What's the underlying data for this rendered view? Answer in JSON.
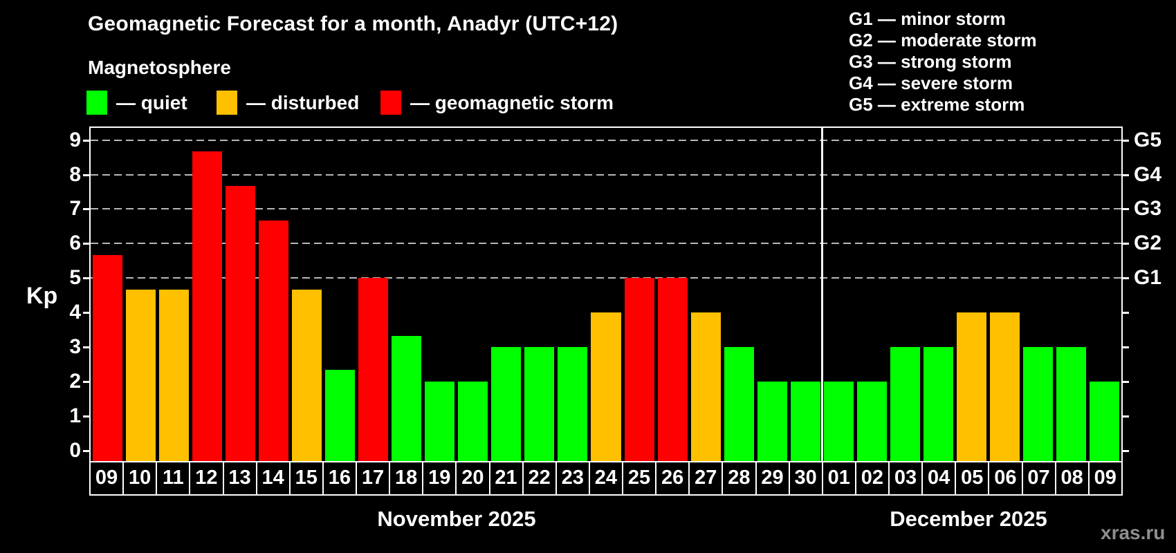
{
  "header": {
    "title": "Geomagnetic Forecast for a month, Anadyr (UTC+12)"
  },
  "legend": {
    "title": "Magnetosphere",
    "items": [
      {
        "key": "quiet",
        "label": "— quiet",
        "color": "#00ff00"
      },
      {
        "key": "disturbed",
        "label": "— disturbed",
        "color": "#ffc000"
      },
      {
        "key": "storm",
        "label": "— geomagnetic storm",
        "color": "#ff0000"
      }
    ]
  },
  "g_legend": {
    "items": [
      "G1 — minor storm",
      "G2 — moderate storm",
      "G3 — strong storm",
      "G4 — severe storm",
      "G5 — extreme storm"
    ]
  },
  "watermark": "xras.ru",
  "chart_data": {
    "type": "bar",
    "title": "Geomagnetic Forecast for a month, Anadyr (UTC+12)",
    "ylabel": "Kp",
    "xlabel": "",
    "ylim": [
      0,
      9
    ],
    "grid": "dashed horizontal lines at Kp 5-9 (G1-G5 storm levels) only",
    "legend_position": "top-left",
    "kp_ticks": [
      0,
      1,
      2,
      3,
      4,
      5,
      6,
      7,
      8,
      9
    ],
    "g_levels": [
      {
        "kp": 5,
        "label": "G1"
      },
      {
        "kp": 6,
        "label": "G2"
      },
      {
        "kp": 7,
        "label": "G3"
      },
      {
        "kp": 8,
        "label": "G4"
      },
      {
        "kp": 9,
        "label": "G5"
      }
    ],
    "colors": {
      "quiet": "#00ff00",
      "disturbed": "#ffc000",
      "storm": "#ff0000"
    },
    "months": [
      {
        "name": "November 2025",
        "days": [
          {
            "date": "09",
            "kp": 5.67,
            "level": "storm"
          },
          {
            "date": "10",
            "kp": 4.67,
            "level": "disturbed"
          },
          {
            "date": "11",
            "kp": 4.67,
            "level": "disturbed"
          },
          {
            "date": "12",
            "kp": 8.67,
            "level": "storm"
          },
          {
            "date": "13",
            "kp": 7.67,
            "level": "storm"
          },
          {
            "date": "14",
            "kp": 6.67,
            "level": "storm"
          },
          {
            "date": "15",
            "kp": 4.67,
            "level": "disturbed"
          },
          {
            "date": "16",
            "kp": 2.33,
            "level": "quiet"
          },
          {
            "date": "17",
            "kp": 5.0,
            "level": "storm"
          },
          {
            "date": "18",
            "kp": 3.33,
            "level": "quiet"
          },
          {
            "date": "19",
            "kp": 2.0,
            "level": "quiet"
          },
          {
            "date": "20",
            "kp": 2.0,
            "level": "quiet"
          },
          {
            "date": "21",
            "kp": 3.0,
            "level": "quiet"
          },
          {
            "date": "22",
            "kp": 3.0,
            "level": "quiet"
          },
          {
            "date": "23",
            "kp": 3.0,
            "level": "quiet"
          },
          {
            "date": "24",
            "kp": 4.0,
            "level": "disturbed"
          },
          {
            "date": "25",
            "kp": 5.0,
            "level": "storm"
          },
          {
            "date": "26",
            "kp": 5.0,
            "level": "storm"
          },
          {
            "date": "27",
            "kp": 4.0,
            "level": "disturbed"
          },
          {
            "date": "28",
            "kp": 3.0,
            "level": "quiet"
          },
          {
            "date": "29",
            "kp": 2.0,
            "level": "quiet"
          },
          {
            "date": "30",
            "kp": 2.0,
            "level": "quiet"
          }
        ]
      },
      {
        "name": "December 2025",
        "days": [
          {
            "date": "01",
            "kp": 2.0,
            "level": "quiet"
          },
          {
            "date": "02",
            "kp": 2.0,
            "level": "quiet"
          },
          {
            "date": "03",
            "kp": 3.0,
            "level": "quiet"
          },
          {
            "date": "04",
            "kp": 3.0,
            "level": "quiet"
          },
          {
            "date": "05",
            "kp": 4.0,
            "level": "disturbed"
          },
          {
            "date": "06",
            "kp": 4.0,
            "level": "disturbed"
          },
          {
            "date": "07",
            "kp": 3.0,
            "level": "quiet"
          },
          {
            "date": "08",
            "kp": 3.0,
            "level": "quiet"
          },
          {
            "date": "09",
            "kp": 2.0,
            "level": "quiet"
          }
        ]
      }
    ]
  }
}
